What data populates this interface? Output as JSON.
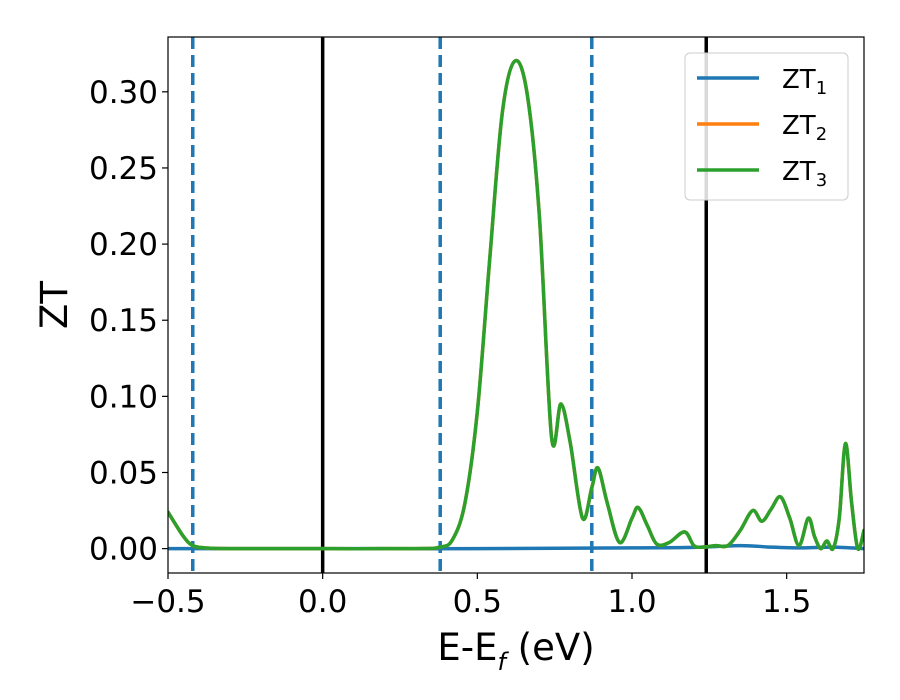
{
  "chart_data": {
    "type": "line",
    "xlabel_main": "E-E",
    "xlabel_sub": "f",
    "xlabel_unit": " (eV)",
    "ylabel": "ZT",
    "xlim": [
      -0.5,
      1.75
    ],
    "ylim": [
      -0.016,
      0.336
    ],
    "x_ticks": [
      -0.5,
      0.0,
      0.5,
      1.0,
      1.5
    ],
    "x_tick_labels": [
      "−0.5",
      "0.0",
      "0.5",
      "1.0",
      "1.5"
    ],
    "y_ticks": [
      0.0,
      0.05,
      0.1,
      0.15,
      0.2,
      0.25,
      0.3
    ],
    "y_tick_labels": [
      "0.00",
      "0.05",
      "0.10",
      "0.15",
      "0.20",
      "0.25",
      "0.30"
    ],
    "grid": false,
    "legend_position": "top-right",
    "vertical_lines": [
      {
        "x": -0.42,
        "style": "dashed",
        "color": "#1f77b4"
      },
      {
        "x": 0.0,
        "style": "solid",
        "color": "#000000"
      },
      {
        "x": 0.38,
        "style": "dashed",
        "color": "#1f77b4"
      },
      {
        "x": 0.87,
        "style": "dashed",
        "color": "#1f77b4"
      },
      {
        "x": 1.24,
        "style": "solid",
        "color": "#000000"
      }
    ],
    "series": [
      {
        "name_main": "ZT",
        "name_sub": "1",
        "color": "#1f77b4",
        "x": [
          -0.5,
          0.0,
          0.5,
          1.0,
          1.2,
          1.35,
          1.45,
          1.55,
          1.65,
          1.75
        ],
        "y": [
          0.0,
          0.0,
          0.0,
          0.0005,
          0.0008,
          0.002,
          0.001,
          0.0005,
          0.001,
          0.0
        ]
      },
      {
        "name_main": "ZT",
        "name_sub": "2",
        "color": "#ff7f0e",
        "x": [
          -0.5,
          -0.45,
          -0.42,
          -0.38,
          -0.3,
          0.0,
          0.3,
          0.38,
          0.42,
          0.46,
          0.5,
          0.54,
          0.58,
          0.62,
          0.66,
          0.7,
          0.74,
          0.77,
          0.8,
          0.84,
          0.87,
          0.89,
          0.92,
          0.96,
          1.0,
          1.02,
          1.05,
          1.08,
          1.12,
          1.17,
          1.2,
          1.23,
          1.27,
          1.31,
          1.35,
          1.39,
          1.42,
          1.45,
          1.48,
          1.51,
          1.54,
          1.57,
          1.59,
          1.61,
          1.63,
          1.65,
          1.67,
          1.69,
          1.71,
          1.73,
          1.75
        ],
        "y": [
          0.024,
          0.008,
          0.002,
          0.0005,
          0.0,
          0.0,
          0.0,
          0.001,
          0.006,
          0.03,
          0.09,
          0.19,
          0.285,
          0.32,
          0.3,
          0.22,
          0.073,
          0.095,
          0.07,
          0.02,
          0.04,
          0.053,
          0.03,
          0.004,
          0.02,
          0.027,
          0.015,
          0.003,
          0.004,
          0.011,
          0.002,
          0.001,
          0.002,
          0.002,
          0.012,
          0.025,
          0.018,
          0.026,
          0.034,
          0.02,
          0.002,
          0.02,
          0.008,
          0.0,
          0.005,
          0.0,
          0.02,
          0.069,
          0.03,
          0.0,
          0.012
        ]
      },
      {
        "name_main": "ZT",
        "name_sub": "3",
        "color": "#2ca02c",
        "x": [
          -0.5,
          -0.45,
          -0.42,
          -0.38,
          -0.3,
          0.0,
          0.3,
          0.38,
          0.42,
          0.46,
          0.5,
          0.54,
          0.58,
          0.62,
          0.66,
          0.7,
          0.74,
          0.77,
          0.8,
          0.84,
          0.87,
          0.89,
          0.92,
          0.96,
          1.0,
          1.02,
          1.05,
          1.08,
          1.12,
          1.17,
          1.2,
          1.23,
          1.27,
          1.31,
          1.35,
          1.39,
          1.42,
          1.45,
          1.48,
          1.51,
          1.54,
          1.57,
          1.59,
          1.61,
          1.63,
          1.65,
          1.67,
          1.69,
          1.71,
          1.73,
          1.75
        ],
        "y": [
          0.024,
          0.008,
          0.002,
          0.0005,
          0.0,
          0.0,
          0.0,
          0.001,
          0.006,
          0.03,
          0.09,
          0.19,
          0.285,
          0.32,
          0.3,
          0.22,
          0.073,
          0.095,
          0.07,
          0.02,
          0.04,
          0.053,
          0.03,
          0.004,
          0.02,
          0.027,
          0.015,
          0.003,
          0.004,
          0.011,
          0.002,
          0.001,
          0.002,
          0.002,
          0.012,
          0.025,
          0.018,
          0.026,
          0.034,
          0.02,
          0.002,
          0.02,
          0.008,
          0.0,
          0.005,
          0.0,
          0.02,
          0.069,
          0.03,
          0.0,
          0.012
        ]
      }
    ]
  }
}
